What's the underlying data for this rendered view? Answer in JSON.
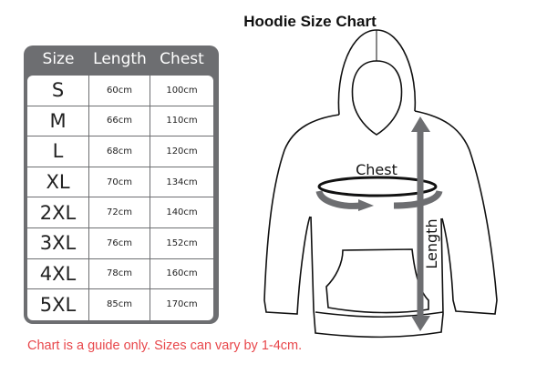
{
  "title": "Hoodie Size Chart",
  "table": {
    "headers": [
      "Size",
      "Length",
      "Chest"
    ],
    "rows": [
      [
        "S",
        "60cm",
        "100cm"
      ],
      [
        "M",
        "66cm",
        "110cm"
      ],
      [
        "L",
        "68cm",
        "120cm"
      ],
      [
        "XL",
        "70cm",
        "134cm"
      ],
      [
        "2XL",
        "72cm",
        "140cm"
      ],
      [
        "3XL",
        "76cm",
        "152cm"
      ],
      [
        "4XL",
        "78cm",
        "160cm"
      ],
      [
        "5XL",
        "85cm",
        "170cm"
      ]
    ]
  },
  "diagram": {
    "chest_label": "Chest",
    "length_label": "Length"
  },
  "note": "Chart is a guide only. Sizes can vary by 1-4cm.",
  "colors": {
    "table": "#6d6e71",
    "note": "#e8474b",
    "arrow": "#6d6e71"
  }
}
